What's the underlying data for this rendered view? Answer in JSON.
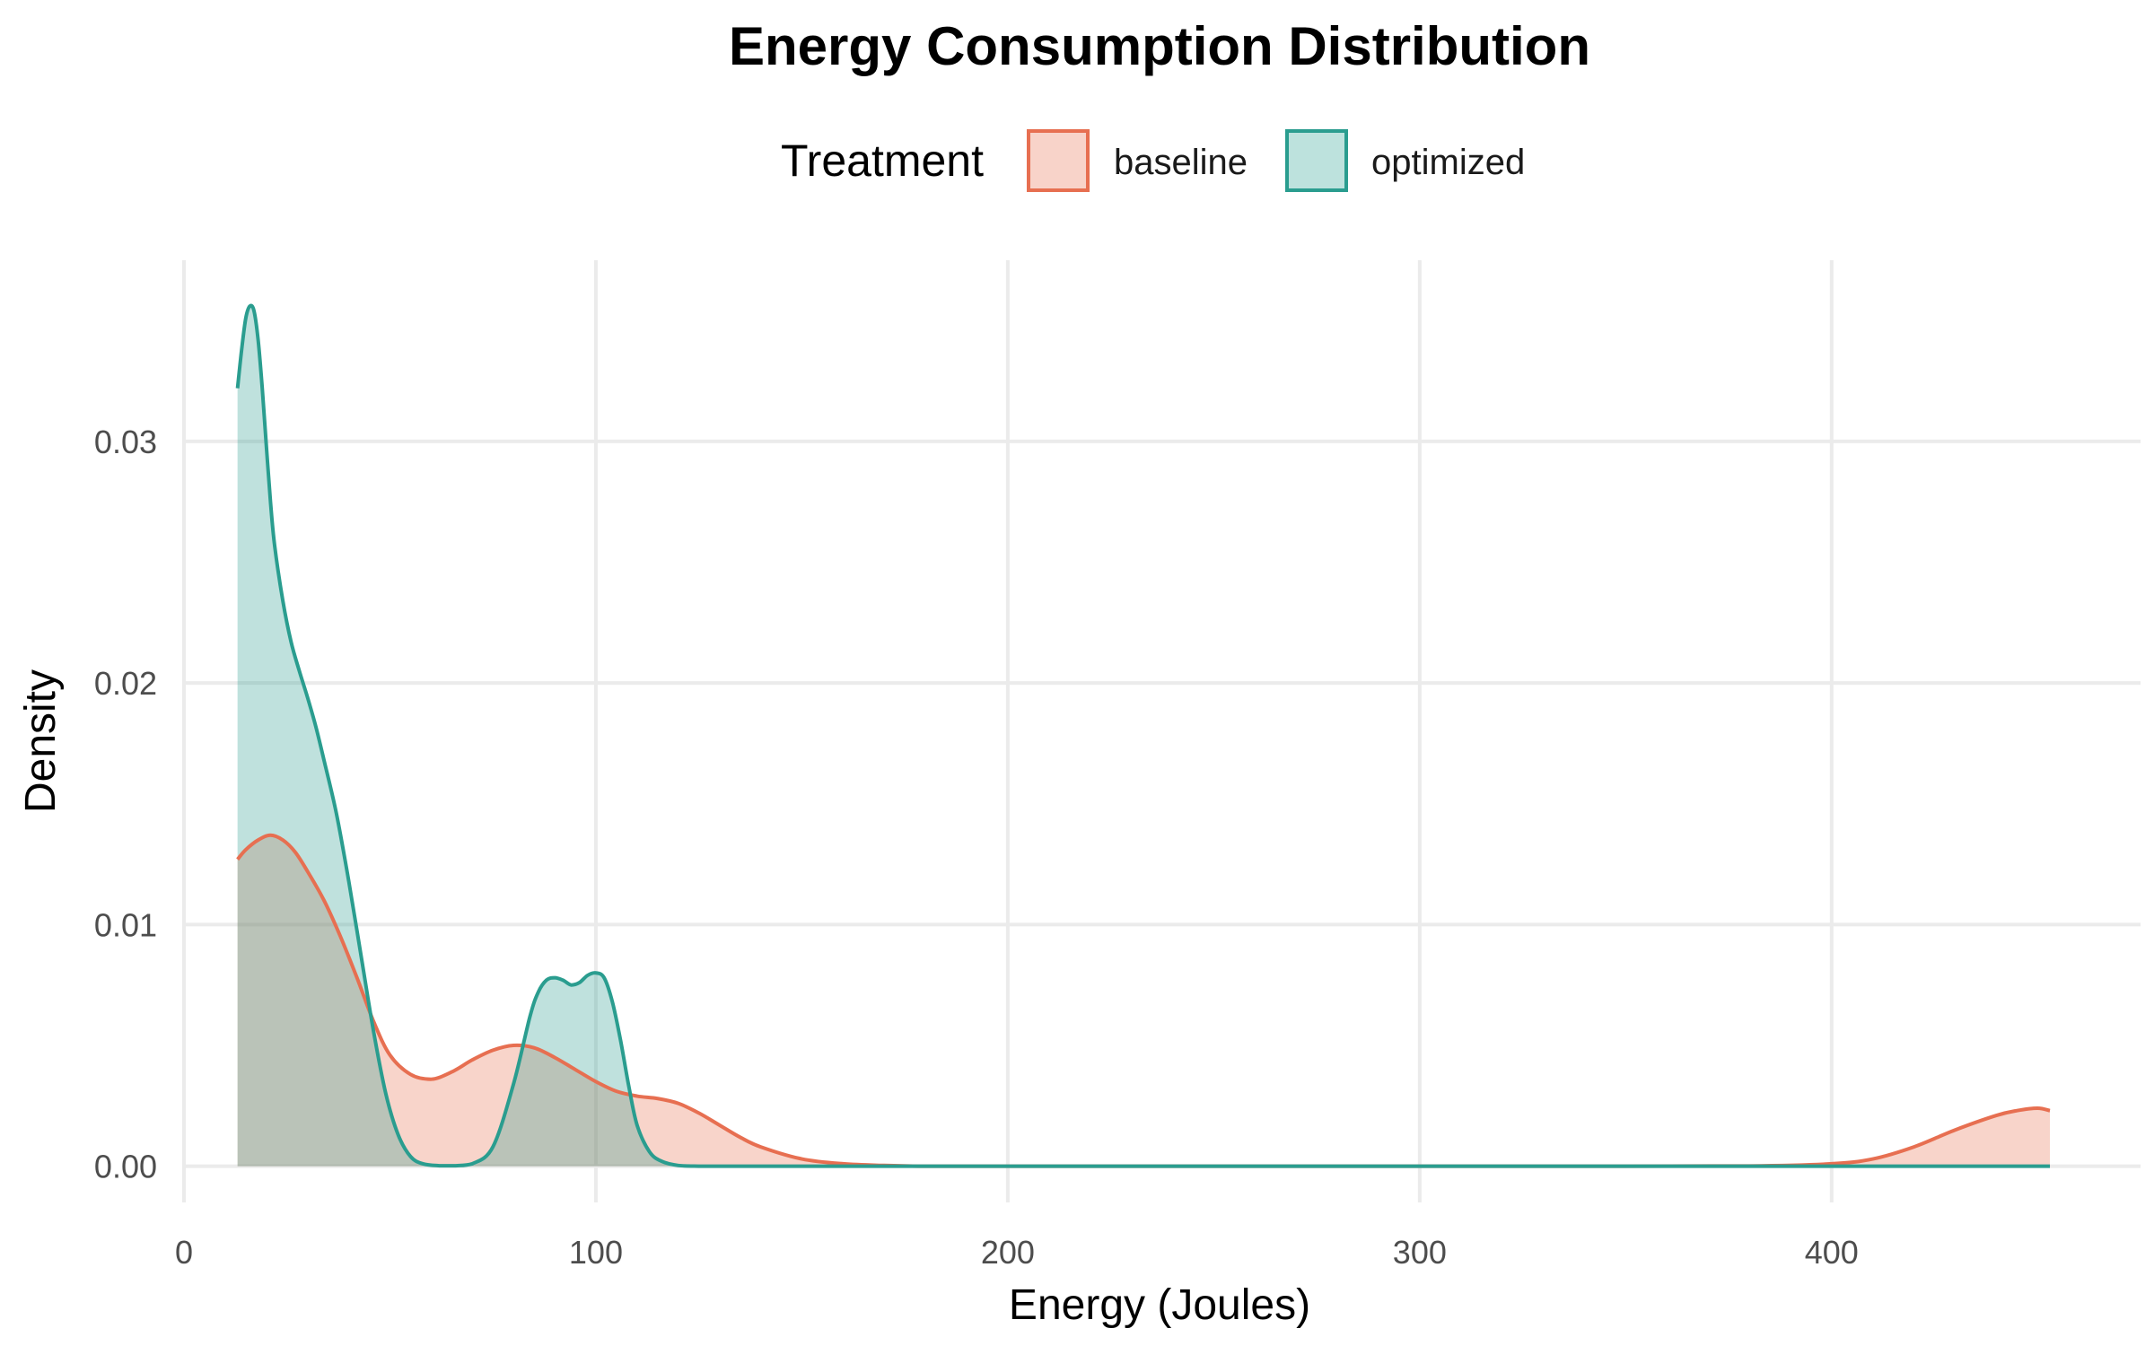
{
  "chart_data": {
    "type": "area",
    "title": "Energy Consumption Distribution",
    "xlabel": "Energy (Joules)",
    "ylabel": "Density",
    "xlim": [
      0,
      475
    ],
    "ylim": [
      -0.0015,
      0.0375
    ],
    "x_ticks": [
      0,
      100,
      200,
      300,
      400
    ],
    "x_tick_labels": [
      "0",
      "100",
      "200",
      "300",
      "400"
    ],
    "y_ticks": [
      0,
      0.01,
      0.02,
      0.03
    ],
    "y_tick_labels": [
      "0.00",
      "0.01",
      "0.02",
      "0.03"
    ],
    "grid": true,
    "legend": {
      "title": "Treatment",
      "position": "top",
      "entries": [
        "baseline",
        "optimized"
      ]
    },
    "series": [
      {
        "name": "baseline",
        "color": "#E76F51",
        "fill": "#F8D3C9",
        "x": [
          13,
          15,
          18,
          21,
          24,
          27,
          30,
          34,
          38,
          42,
          46,
          50,
          55,
          60,
          65,
          70,
          75,
          80,
          85,
          90,
          95,
          100,
          105,
          110,
          115,
          120,
          125,
          130,
          135,
          140,
          150,
          160,
          170,
          180,
          200,
          250,
          300,
          350,
          380,
          400,
          410,
          420,
          430,
          440,
          445,
          450,
          453
        ],
        "y": [
          0.0127,
          0.0131,
          0.0135,
          0.0137,
          0.0135,
          0.013,
          0.0122,
          0.011,
          0.0095,
          0.0078,
          0.006,
          0.0046,
          0.0038,
          0.0036,
          0.0039,
          0.0044,
          0.0048,
          0.005,
          0.0049,
          0.0045,
          0.004,
          0.0035,
          0.0031,
          0.0029,
          0.0028,
          0.0026,
          0.0022,
          0.0017,
          0.0012,
          0.0008,
          0.0003,
          0.0001,
          3e-05,
          0.0,
          0.0,
          0.0,
          0.0,
          0.0,
          1e-05,
          0.0001,
          0.0003,
          0.0008,
          0.0015,
          0.0021,
          0.0023,
          0.0024,
          0.0023
        ]
      },
      {
        "name": "optimized",
        "color": "#2A9D8F",
        "fill": "#BDE2DD",
        "x": [
          13,
          14,
          15,
          16,
          17,
          18,
          19,
          20,
          21,
          22,
          24,
          26,
          28,
          30,
          32,
          34,
          37,
          40,
          43,
          46,
          49,
          52,
          55,
          58,
          62,
          66,
          70,
          75,
          80,
          84,
          86,
          88,
          90,
          92,
          94,
          96,
          98,
          100,
          102,
          104,
          106,
          108,
          110,
          113,
          116,
          120,
          125,
          130,
          140,
          200,
          300,
          400,
          453
        ],
        "y": [
          0.0322,
          0.0338,
          0.0351,
          0.0356,
          0.0354,
          0.0342,
          0.0322,
          0.0298,
          0.0275,
          0.0257,
          0.0234,
          0.0217,
          0.0205,
          0.0194,
          0.0182,
          0.0168,
          0.0146,
          0.0118,
          0.0087,
          0.0056,
          0.003,
          0.0013,
          0.0004,
          0.0001,
          2e-05,
          2e-05,
          0.0001,
          0.0008,
          0.0034,
          0.0062,
          0.0072,
          0.0077,
          0.0078,
          0.0077,
          0.0075,
          0.0076,
          0.0079,
          0.008,
          0.0078,
          0.0068,
          0.0052,
          0.0033,
          0.0017,
          0.0006,
          0.0002,
          3e-05,
          0.0,
          0.0,
          0.0,
          0.0,
          0.0,
          0.0,
          0.0
        ]
      }
    ]
  }
}
